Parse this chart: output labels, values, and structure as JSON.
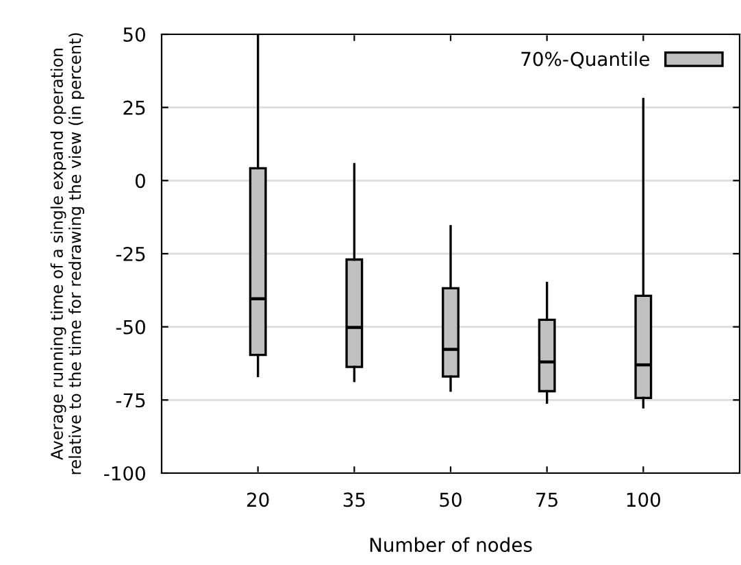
{
  "chart_data": {
    "type": "box",
    "xlabel": "Number of nodes",
    "ylabel": "Average running time of a single expand operation\nrelative to the time for redrawing the view (in percent)",
    "categories": [
      "20",
      "35",
      "50",
      "75",
      "100"
    ],
    "series": [
      {
        "name": "70%-Quantile",
        "color": "#c0c0c0",
        "boxes": [
          {
            "low": -66.8,
            "q1": -59.6,
            "median": -40.4,
            "q3": 4.2,
            "high": 50
          },
          {
            "low": -68.5,
            "q1": -63.7,
            "median": -50.2,
            "q3": -27,
            "high": 5.6
          },
          {
            "low": -71.8,
            "q1": -67,
            "median": -57.7,
            "q3": -36.8,
            "high": -15.6
          },
          {
            "low": -75.9,
            "q1": -72,
            "median": -62,
            "q3": -47.6,
            "high": -35
          },
          {
            "low": -77.5,
            "q1": -74.3,
            "median": -63,
            "q3": -39.4,
            "high": 27.9
          }
        ]
      }
    ],
    "ylim": [
      -100,
      50
    ],
    "yticks": [
      -100,
      -75,
      -50,
      -25,
      0,
      25,
      50
    ],
    "grid": "y",
    "legend": "top right"
  }
}
